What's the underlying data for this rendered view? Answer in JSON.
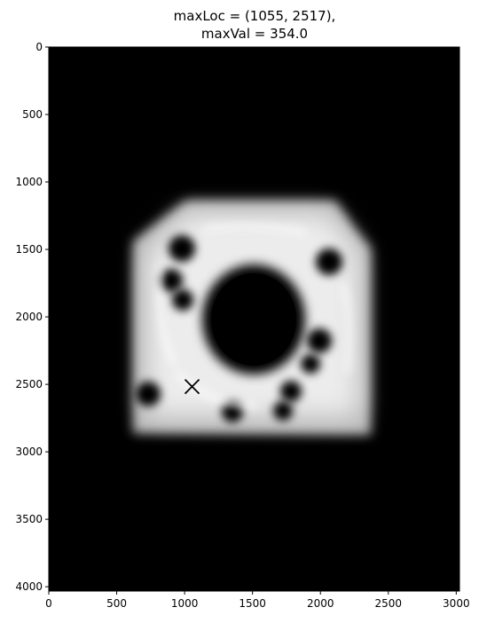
{
  "chart_data": {
    "type": "heatmap",
    "title_lines": [
      "maxLoc = (1055, 2517),",
      "maxVal = 354.0"
    ],
    "xlabel": "",
    "ylabel": "",
    "xlim": [
      0,
      3024
    ],
    "ylim": [
      4032,
      0
    ],
    "colormap": "gray",
    "grid": false,
    "xticks": [
      0,
      500,
      1000,
      1500,
      2000,
      2500,
      3000
    ],
    "yticks": [
      0,
      500,
      1000,
      1500,
      2000,
      2500,
      3000,
      3500,
      4000
    ],
    "max_location": {
      "x": 1055,
      "y": 2517,
      "marker": "x"
    },
    "max_value": 354.0
  }
}
